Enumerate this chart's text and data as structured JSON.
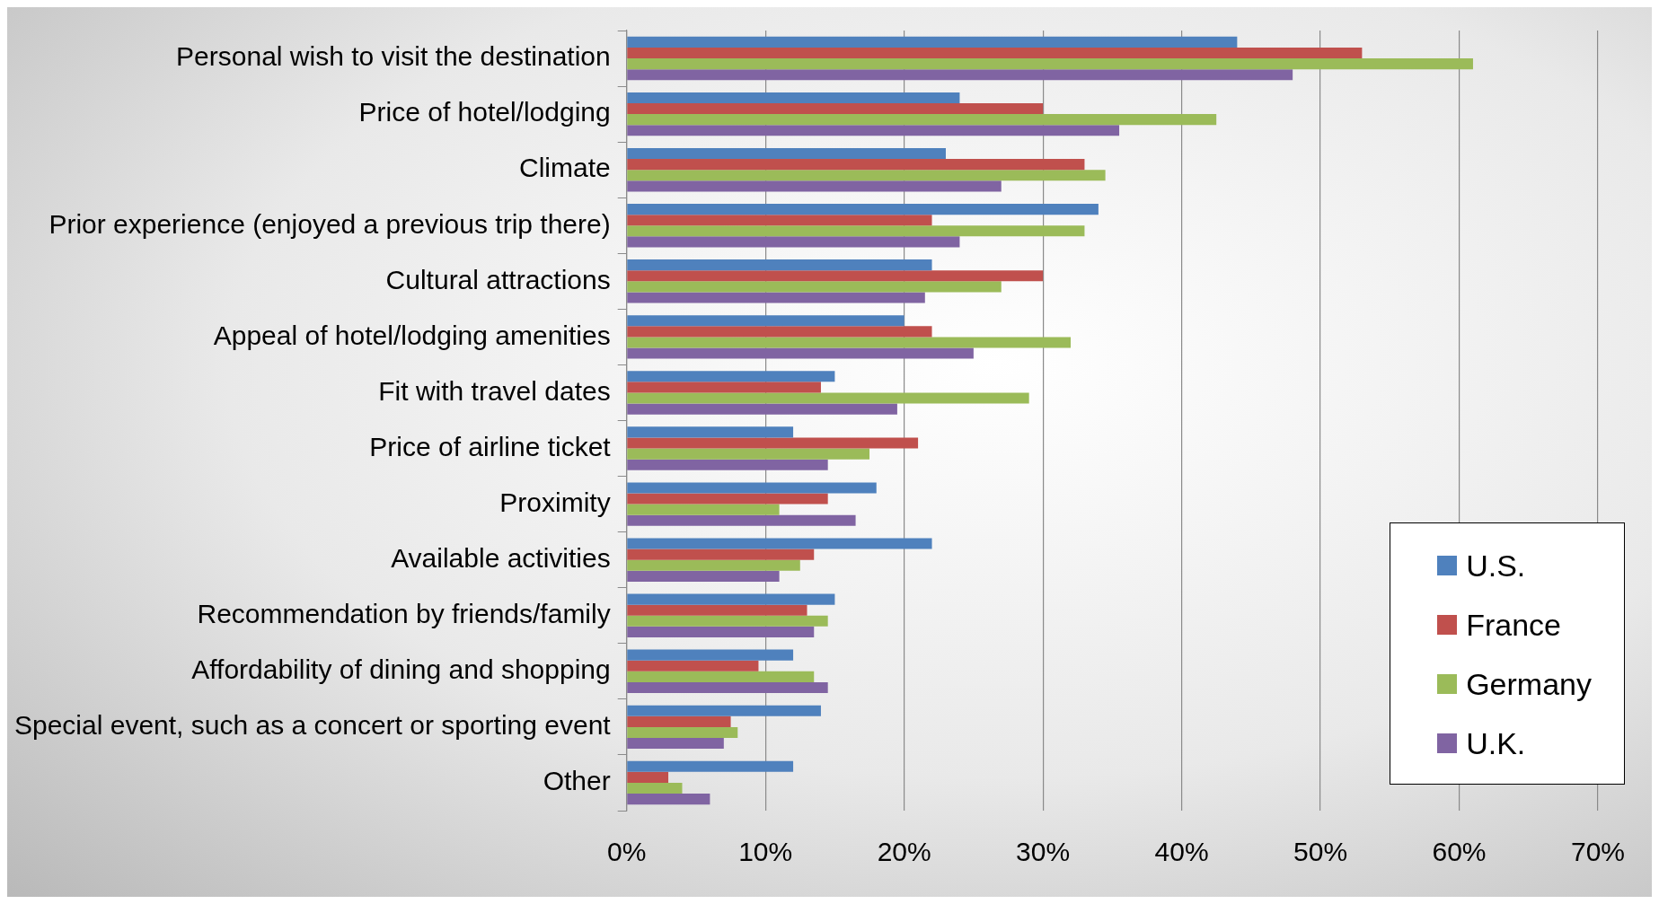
{
  "chart_data": {
    "type": "bar",
    "orientation": "horizontal",
    "categories": [
      "Personal wish to visit the destination",
      "Price of hotel/lodging",
      "Climate",
      "Prior experience (enjoyed a previous trip there)",
      "Cultural attractions",
      "Appeal of hotel/lodging amenities",
      "Fit with travel dates",
      "Price of airline ticket",
      "Proximity",
      "Available activities",
      "Recommendation by friends/family",
      "Affordability of dining and shopping",
      "Special event, such as a concert or sporting event",
      "Other"
    ],
    "series": [
      {
        "name": "U.S.",
        "color": "#4f81bd",
        "values": [
          44,
          24,
          23,
          34,
          22,
          20,
          15,
          12,
          18,
          22,
          15,
          12,
          14,
          12
        ]
      },
      {
        "name": "France",
        "color": "#c0504d",
        "values": [
          53,
          30,
          33,
          22,
          30,
          22,
          14,
          21,
          14.5,
          13.5,
          13,
          9.5,
          7.5,
          3
        ]
      },
      {
        "name": "Germany",
        "color": "#9bbb59",
        "values": [
          61,
          42.5,
          34.5,
          33,
          27,
          32,
          29,
          17.5,
          11,
          12.5,
          14.5,
          13.5,
          8,
          4
        ]
      },
      {
        "name": "U.K.",
        "color": "#8064a2",
        "values": [
          48,
          35.5,
          27,
          24,
          21.5,
          25,
          19.5,
          14.5,
          16.5,
          11,
          13.5,
          14.5,
          7,
          6
        ]
      }
    ],
    "xlim": [
      0,
      70
    ],
    "xticks": [
      {
        "value": 0,
        "label": "0%"
      },
      {
        "value": 10,
        "label": "10%"
      },
      {
        "value": 20,
        "label": "20%"
      },
      {
        "value": 30,
        "label": "30%"
      },
      {
        "value": 40,
        "label": "40%"
      },
      {
        "value": 50,
        "label": "50%"
      },
      {
        "value": 60,
        "label": "60%"
      },
      {
        "value": 70,
        "label": "70%"
      }
    ],
    "grid": "x",
    "legend": "bottom right"
  }
}
